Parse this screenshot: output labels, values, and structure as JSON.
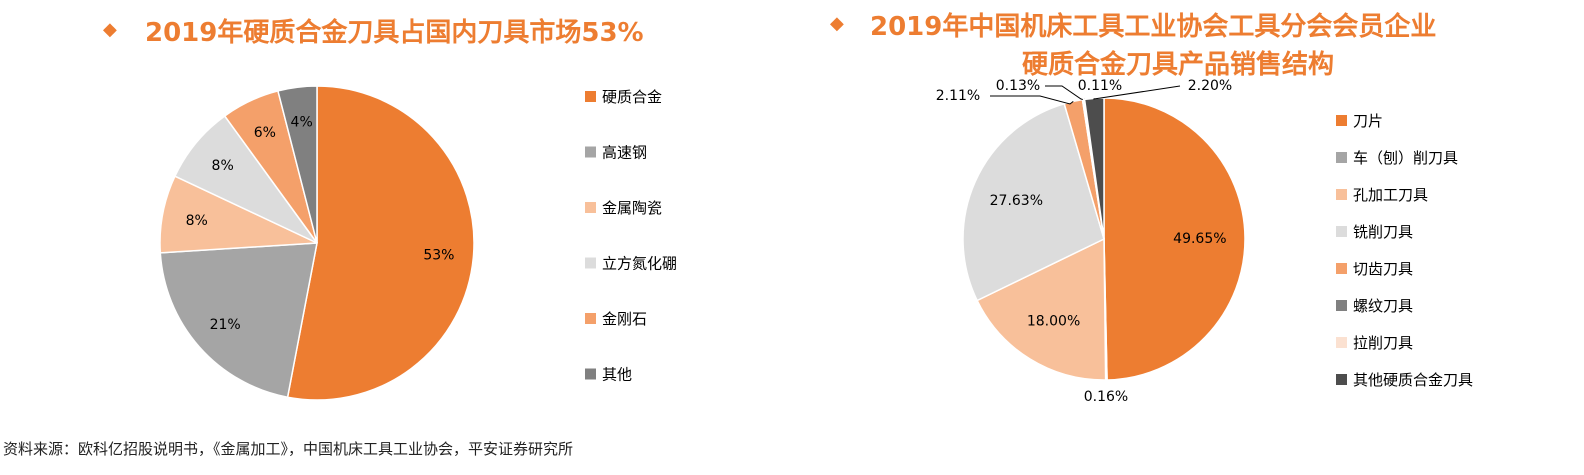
{
  "left_title": "2019年硬质合金刀具占国内刀具市场53%",
  "right_title_line1": "2019年中国机床工具工业协会工具分会会员企业",
  "right_title_line2": "硬质合金刀具产品销售结构",
  "source_note": "资料来源：欧科亿招股说明书，《金属加工》，中国机床工具工业协会，平安证券研究所",
  "colors": {
    "accent": "#ed7d31"
  },
  "chart_data": [
    {
      "type": "pie",
      "title": "2019年硬质合金刀具占国内刀具市场53%",
      "legend_position": "right",
      "slices": [
        {
          "name": "硬质合金",
          "value": 53,
          "label": "53%",
          "color": "#ed7d31"
        },
        {
          "name": "高速钢",
          "value": 21,
          "label": "21%",
          "color": "#a5a5a5"
        },
        {
          "name": "金属陶瓷",
          "value": 8,
          "label": "8%",
          "color": "#f8c09a"
        },
        {
          "name": "立方氮化硼",
          "value": 8,
          "label": "8%",
          "color": "#dcdcdc"
        },
        {
          "name": "金刚石",
          "value": 6,
          "label": "6%",
          "color": "#f4a06a"
        },
        {
          "name": "其他",
          "value": 4,
          "label": "4%",
          "color": "#808080"
        }
      ]
    },
    {
      "type": "pie",
      "title": "2019年中国机床工具工业协会工具分会会员企业硬质合金刀具产品销售结构",
      "legend_position": "right",
      "slices": [
        {
          "name": "刀片",
          "value": 49.65,
          "label": "49.65%",
          "color": "#ed7d31"
        },
        {
          "name": "车（刨）削刀具",
          "value": 0.16,
          "label": "0.16%",
          "color": "#a5a5a5"
        },
        {
          "name": "孔加工刀具",
          "value": 18.0,
          "label": "18.00%",
          "color": "#f8c09a"
        },
        {
          "name": "铣削刀具",
          "value": 27.63,
          "label": "27.63%",
          "color": "#dcdcdc"
        },
        {
          "name": "切齿刀具",
          "value": 2.11,
          "label": "2.11%",
          "color": "#f4a06a"
        },
        {
          "name": "螺纹刀具",
          "value": 0.13,
          "label": "0.13%",
          "color": "#808080"
        },
        {
          "name": "拉削刀具",
          "value": 0.11,
          "label": "0.11%",
          "color": "#fbe1d1"
        },
        {
          "name": "其他硬质合金刀具",
          "value": 2.2,
          "label": "2.20%",
          "color": "#4d4d4d"
        }
      ]
    }
  ]
}
